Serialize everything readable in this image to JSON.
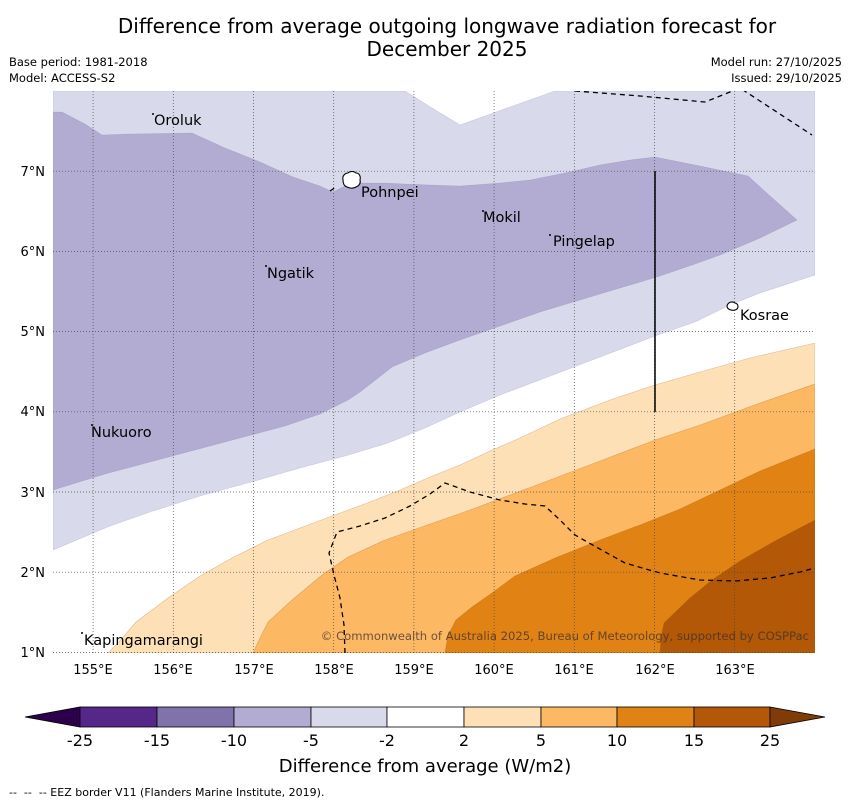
{
  "title": {
    "line1": "Difference from average outgoing longwave radiation forecast for",
    "line2": "December 2025"
  },
  "meta": {
    "base_period": "Base period: 1981-2018",
    "model": "Model: ACCESS-S2",
    "model_run": "Model run: 27/10/2025",
    "issued": "Issued: 29/10/2025"
  },
  "map": {
    "lon_ticks": [
      "155°E",
      "156°E",
      "157°E",
      "158°E",
      "159°E",
      "160°E",
      "161°E",
      "162°E",
      "163°E"
    ],
    "lat_ticks": [
      "7°N",
      "6°N",
      "5°N",
      "4°N",
      "3°N",
      "2°N",
      "1°N"
    ],
    "places": [
      "Oroluk",
      "Pohnpei",
      "Mokil",
      "Pingelap",
      "Ngatik",
      "Kosrae",
      "Nukuoro",
      "Kapingamarangi"
    ],
    "copyright": "© Commonwealth of Australia 2025, Bureau of Meteorology, supported by COSPPac",
    "line_color": "#000000"
  },
  "colorbar": {
    "ticks": [
      "-25",
      "-15",
      "-10",
      "-5",
      "-2",
      "2",
      "5",
      "10",
      "15",
      "25"
    ],
    "colors": [
      "#542788",
      "#8073ac",
      "#b2abd2",
      "#d8daeb",
      "#ffffff",
      "#fee0b6",
      "#fdb863",
      "#e08214",
      "#b35806"
    ],
    "extend_low_color": "#2d004b",
    "extend_high_color": "#7f3b08",
    "label": "Difference from average (W/m2)"
  },
  "footnote": "--  --  -- EEZ border V11 (Flanders Marine Institute, 2019)."
}
